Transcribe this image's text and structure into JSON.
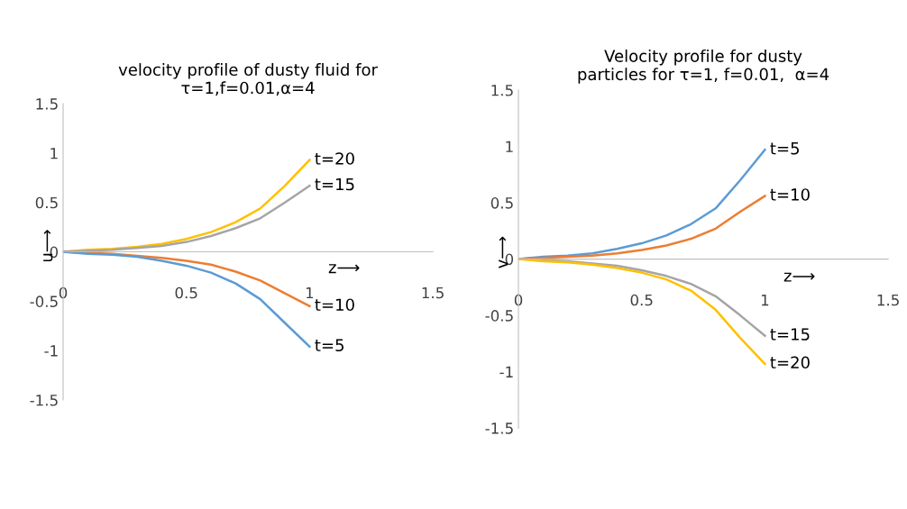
{
  "chart_data": [
    {
      "type": "line",
      "title": "velocity profile of dusty fluid for\nτ=1,f=0.01,α=4",
      "xlabel": "z⟶",
      "ylabel": "u⟶",
      "x": [
        0,
        0.1,
        0.2,
        0.3,
        0.4,
        0.5,
        0.6,
        0.7,
        0.8,
        0.9,
        1
      ],
      "xlim": [
        0,
        1.5
      ],
      "xticks": [
        0,
        0.5,
        1,
        1.5
      ],
      "ylim": [
        -1.5,
        1.5
      ],
      "yticks": [
        -1.5,
        -1,
        -0.5,
        0,
        0.5,
        1,
        1.5
      ],
      "grid": false,
      "legend": false,
      "series": [
        {
          "name": "t=20",
          "color": "#ffc000",
          "values": [
            0,
            0.02,
            0.03,
            0.05,
            0.08,
            0.13,
            0.2,
            0.3,
            0.44,
            0.67,
            0.93
          ]
        },
        {
          "name": "t=15",
          "color": "#a5a5a5",
          "values": [
            0,
            0.01,
            0.02,
            0.04,
            0.06,
            0.1,
            0.16,
            0.24,
            0.34,
            0.5,
            0.67
          ]
        },
        {
          "name": "t=10",
          "color": "#ed7d31",
          "values": [
            0,
            -0.01,
            -0.02,
            -0.04,
            -0.06,
            -0.09,
            -0.13,
            -0.2,
            -0.29,
            -0.42,
            -0.55
          ]
        },
        {
          "name": "t=5",
          "color": "#5b9bd5",
          "values": [
            0,
            -0.02,
            -0.03,
            -0.05,
            -0.09,
            -0.14,
            -0.21,
            -0.32,
            -0.48,
            -0.72,
            -0.96
          ]
        }
      ]
    },
    {
      "type": "line",
      "title": "Velocity profile for dusty\nparticles for τ=1, f=0.01,  α=4",
      "xlabel": "z⟶",
      "ylabel": "v⟶",
      "x": [
        0,
        0.1,
        0.2,
        0.3,
        0.4,
        0.5,
        0.6,
        0.7,
        0.8,
        0.9,
        1
      ],
      "xlim": [
        0,
        1.5
      ],
      "xticks": [
        0,
        0.5,
        1,
        1.5
      ],
      "ylim": [
        -1.5,
        1.5
      ],
      "yticks": [
        -1.5,
        -1,
        -0.5,
        0,
        0.5,
        1,
        1.5
      ],
      "grid": false,
      "legend": false,
      "series": [
        {
          "name": "t=5",
          "color": "#5b9bd5",
          "values": [
            0,
            0.02,
            0.03,
            0.05,
            0.09,
            0.14,
            0.21,
            0.31,
            0.45,
            0.7,
            0.97
          ]
        },
        {
          "name": "t=10",
          "color": "#ed7d31",
          "values": [
            0,
            0.01,
            0.02,
            0.03,
            0.05,
            0.08,
            0.12,
            0.18,
            0.27,
            0.42,
            0.56
          ]
        },
        {
          "name": "t=15",
          "color": "#a5a5a5",
          "values": [
            0,
            -0.01,
            -0.02,
            -0.04,
            -0.06,
            -0.1,
            -0.15,
            -0.22,
            -0.33,
            -0.5,
            -0.68
          ]
        },
        {
          "name": "t=20",
          "color": "#ffc000",
          "values": [
            0,
            -0.02,
            -0.03,
            -0.05,
            -0.08,
            -0.12,
            -0.18,
            -0.28,
            -0.45,
            -0.7,
            -0.93
          ]
        }
      ]
    }
  ]
}
